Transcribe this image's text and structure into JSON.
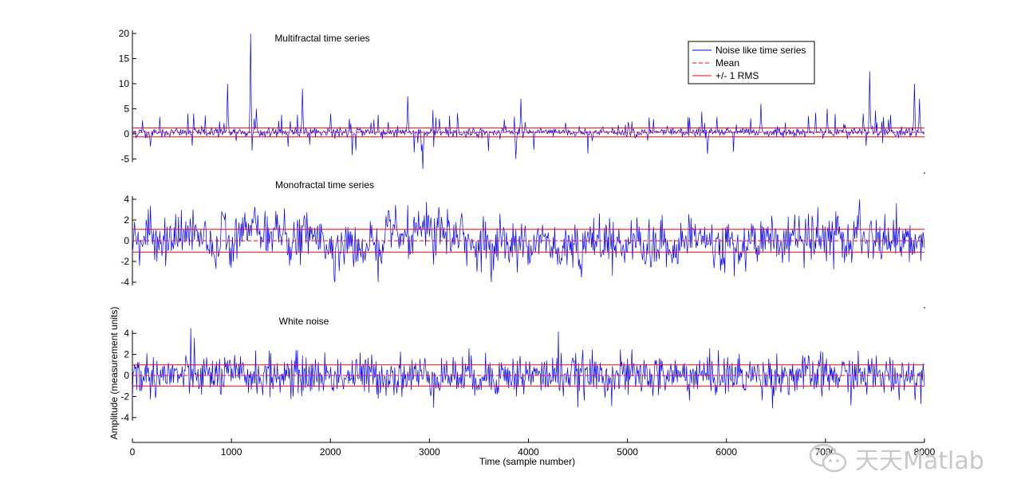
{
  "chart_data": [
    {
      "type": "line",
      "panel": "top",
      "title": "Multifractal time series",
      "xlim": [
        0,
        8000
      ],
      "ylim": [
        -7,
        20
      ],
      "yticks": [
        20,
        15,
        10,
        5,
        0,
        -5
      ],
      "stats": {
        "mean": 0.3,
        "rms_upper": 1.2,
        "rms_lower": -0.6
      },
      "series": [
        {
          "name": "Noise like time series",
          "kind": "multifractal",
          "samples": 8000,
          "baseline_noise": 0.45,
          "bursts": [
            {
              "x": 180,
              "y": -2.5
            },
            {
              "x": 960,
              "y": 10
            },
            {
              "x": 1195,
              "y": 20
            },
            {
              "x": 1250,
              "y": 5
            },
            {
              "x": 1720,
              "y": 9
            },
            {
              "x": 2000,
              "y": 4
            },
            {
              "x": 2780,
              "y": 7.5
            },
            {
              "x": 2930,
              "y": -7
            },
            {
              "x": 3100,
              "y": 3
            },
            {
              "x": 3920,
              "y": 7
            },
            {
              "x": 3870,
              "y": -5
            },
            {
              "x": 5810,
              "y": -4
            },
            {
              "x": 6350,
              "y": 6
            },
            {
              "x": 7020,
              "y": 5
            },
            {
              "x": 7450,
              "y": 12.5
            },
            {
              "x": 7380,
              "y": 4
            },
            {
              "x": 7900,
              "y": 10
            },
            {
              "x": 7950,
              "y": 7
            }
          ]
        }
      ]
    },
    {
      "type": "line",
      "panel": "middle",
      "title": "Monofractal time series",
      "xlim": [
        0,
        8000
      ],
      "ylim": [
        -5,
        5
      ],
      "yticks": [
        4,
        2,
        0,
        -2,
        -4
      ],
      "stats": {
        "mean": 0,
        "rms_upper": 1.1,
        "rms_lower": -1.1
      },
      "series": [
        {
          "name": "Noise like time series",
          "kind": "monofractal",
          "samples": 8000,
          "amplitude": 1.1,
          "max": 4,
          "min": -4
        }
      ]
    },
    {
      "type": "line",
      "panel": "bottom",
      "title": "White noise",
      "xlim": [
        0,
        8000
      ],
      "ylim": [
        -5,
        5
      ],
      "yticks": [
        4,
        2,
        0,
        -2,
        -4
      ],
      "stats": {
        "mean": 0,
        "rms_upper": 1.0,
        "rms_lower": -1.0
      },
      "series": [
        {
          "name": "Noise like time series",
          "kind": "white",
          "samples": 8000,
          "amplitude": 1.0,
          "max": 4.5,
          "min": -3.3
        }
      ]
    }
  ],
  "axes": {
    "xlabel": "Time (sample number)",
    "ylabel": "Amplitude (measurement units)",
    "xticks": [
      0,
      1000,
      2000,
      3000,
      4000,
      5000,
      6000,
      7000,
      8000
    ]
  },
  "legend": {
    "location": "top-right",
    "entries": [
      {
        "label": "Noise like time series",
        "color": "#0000ff",
        "style": "solid"
      },
      {
        "label": "Mean",
        "color": "#ff0000",
        "style": "dashed"
      },
      {
        "label": "+/- 1 RMS",
        "color": "#ff0000",
        "style": "solid"
      }
    ]
  },
  "colors": {
    "signal": "#0000ff",
    "reference": "#ff0000",
    "axis": "#000000",
    "watermark": "#c8c8c8"
  },
  "watermark": {
    "text": "天天Matlab",
    "icon": "wechat-logo-icon"
  }
}
